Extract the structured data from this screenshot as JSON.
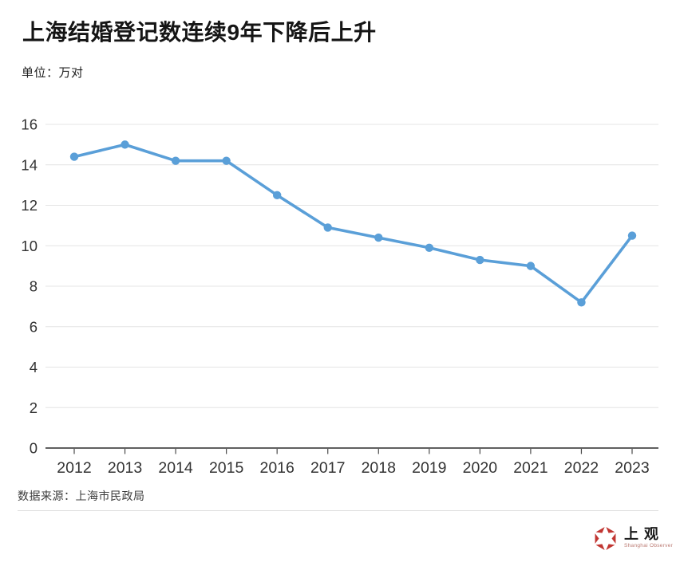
{
  "header": {
    "title": "上海结婚登记数连续9年下降后上升",
    "subtitle": "单位：万对"
  },
  "footer": {
    "source": "数据来源：上海市民政局",
    "logo_cn": "上观",
    "logo_en": "Shanghai Observer"
  },
  "colors": {
    "line": "#5A9FD8",
    "grid": "#e4e4e4",
    "axis": "#4a4a4a",
    "tick_label": "#333333",
    "logo_red": "#c13531"
  },
  "chart_data": {
    "type": "line",
    "title": "上海结婚登记数连续9年下降后上升",
    "unit": "万对",
    "categories": [
      "2012",
      "2013",
      "2014",
      "2015",
      "2016",
      "2017",
      "2018",
      "2019",
      "2020",
      "2021",
      "2022",
      "2023"
    ],
    "series": [
      {
        "name": "结婚登记数",
        "values": [
          14.4,
          15.0,
          14.2,
          14.2,
          12.5,
          10.9,
          10.4,
          9.9,
          9.3,
          9.0,
          7.2,
          10.5
        ]
      }
    ],
    "xlabel": "",
    "ylabel": "",
    "ylim": [
      0,
      16
    ],
    "yticks": [
      0,
      2,
      4,
      6,
      8,
      10,
      12,
      14,
      16
    ],
    "grid": true,
    "legend": false,
    "marker": "circle"
  }
}
